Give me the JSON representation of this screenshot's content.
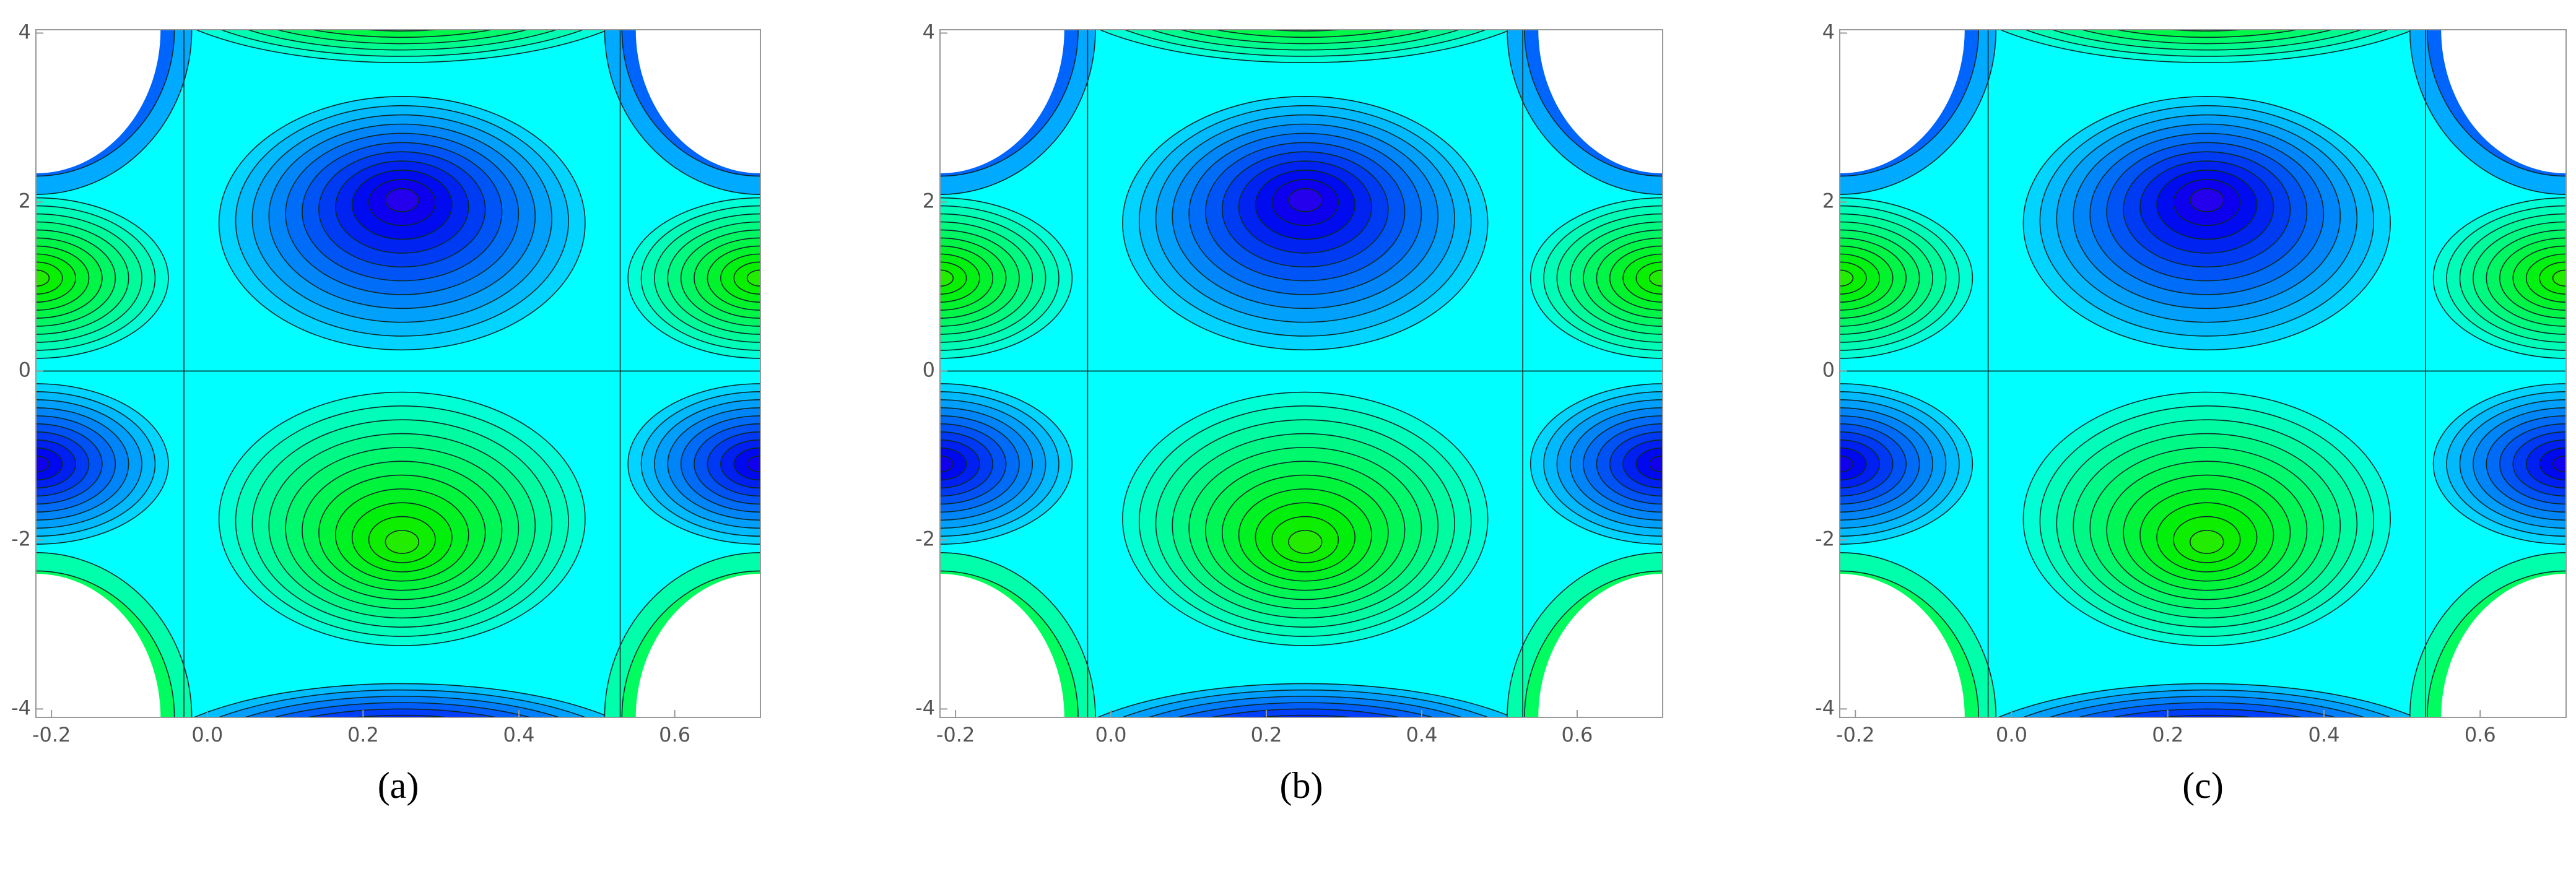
{
  "chart_data": [
    {
      "type": "contour",
      "caption": "(a)",
      "xlim": [
        -0.22,
        0.71
      ],
      "ylim": [
        -4.1,
        4.04
      ],
      "xticks": [
        -0.2,
        {
          "value": 0,
          "label": "0.0"
        },
        0.2,
        0.4,
        0.6
      ],
      "yticks": [
        -4,
        -2,
        0,
        2,
        4
      ]
    },
    {
      "type": "contour",
      "caption": "(b)",
      "xlim": [
        -0.22,
        0.71
      ],
      "ylim": [
        -4.1,
        4.04
      ],
      "xticks": [
        -0.2,
        {
          "value": 0,
          "label": "0.0"
        },
        0.2,
        0.4,
        0.6
      ],
      "yticks": [
        -4,
        -2,
        0,
        2,
        4
      ]
    },
    {
      "type": "contour",
      "caption": "(c)",
      "xlim": [
        -0.22,
        0.71
      ],
      "ylim": [
        -4.1,
        4.04
      ],
      "xticks": [
        -0.2,
        {
          "value": 0,
          "label": "0.0"
        },
        0.2,
        0.4,
        0.6
      ],
      "yticks": [
        -4,
        -2,
        0,
        2,
        4
      ]
    }
  ]
}
